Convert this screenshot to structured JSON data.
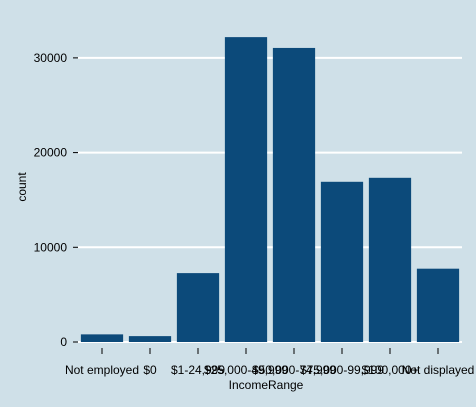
{
  "chart_data": {
    "type": "bar",
    "title": "",
    "xlabel": "IncomeRange",
    "ylabel": "count",
    "categories": [
      "Not employed",
      "$0",
      "$1-24,999",
      "$25,000-49,999",
      "$50,000-74,999",
      "$75,000-99,999",
      "$100,000+",
      "Not displayed"
    ],
    "values": [
      806,
      621,
      7274,
      32192,
      31050,
      16916,
      17337,
      7741
    ],
    "ylim": [
      0,
      34000
    ],
    "yticks": [
      0,
      10000,
      20000,
      30000
    ],
    "grid": true,
    "legend": "none",
    "colors": {
      "bar": "#0c4a7a",
      "background": "#cfe0e8",
      "grid": "#ffffff"
    }
  }
}
